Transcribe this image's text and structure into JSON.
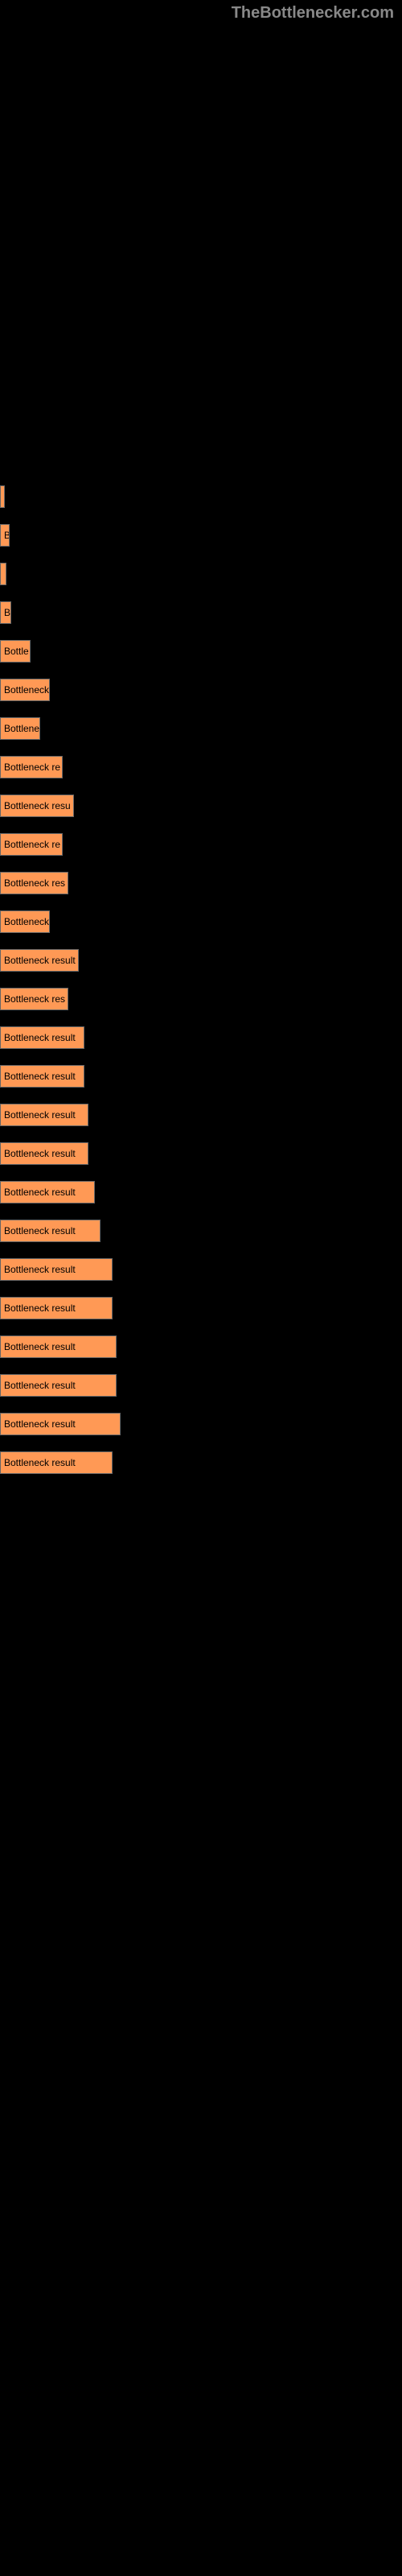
{
  "watermark": "TheBottlenecker.com",
  "chart": {
    "type": "bar",
    "background_color": "#000000",
    "bar_color": "#ff9955",
    "bar_border_color": "#666666",
    "text_color": "#000000",
    "label_color": "#ffffff",
    "max_width": 500,
    "bars": [
      {
        "label": "",
        "text": "",
        "width": 3
      },
      {
        "label": "",
        "text": "B",
        "width": 12
      },
      {
        "label": "",
        "text": "",
        "width": 8
      },
      {
        "label": "",
        "text": "B",
        "width": 14
      },
      {
        "label": "",
        "text": "Bottle",
        "width": 38
      },
      {
        "label": "",
        "text": "Bottleneck",
        "width": 62
      },
      {
        "label": "",
        "text": "Bottlene",
        "width": 50
      },
      {
        "label": "",
        "text": "Bottleneck re",
        "width": 78
      },
      {
        "label": "",
        "text": "Bottleneck resu",
        "width": 92
      },
      {
        "label": "",
        "text": "Bottleneck re",
        "width": 78
      },
      {
        "label": "",
        "text": "Bottleneck res",
        "width": 85
      },
      {
        "label": "",
        "text": "Bottleneck",
        "width": 62
      },
      {
        "label": "",
        "text": "Bottleneck result",
        "width": 98
      },
      {
        "label": "",
        "text": "Bottleneck res",
        "width": 85
      },
      {
        "label": "",
        "text": "Bottleneck result",
        "width": 105
      },
      {
        "label": "",
        "text": "Bottleneck result",
        "width": 105
      },
      {
        "label": "",
        "text": "Bottleneck result",
        "width": 110
      },
      {
        "label": "",
        "text": "Bottleneck result",
        "width": 110
      },
      {
        "label": "",
        "text": "Bottleneck result",
        "width": 118
      },
      {
        "label": "",
        "text": "Bottleneck result",
        "width": 125
      },
      {
        "label": "",
        "text": "Bottleneck result",
        "width": 140
      },
      {
        "label": "",
        "text": "Bottleneck result",
        "width": 140
      },
      {
        "label": "",
        "text": "Bottleneck result",
        "width": 145
      },
      {
        "label": "",
        "text": "Bottleneck result",
        "width": 145
      },
      {
        "label": "",
        "text": "Bottleneck result",
        "width": 150
      },
      {
        "label": "",
        "text": "Bottleneck result",
        "width": 140
      }
    ]
  }
}
